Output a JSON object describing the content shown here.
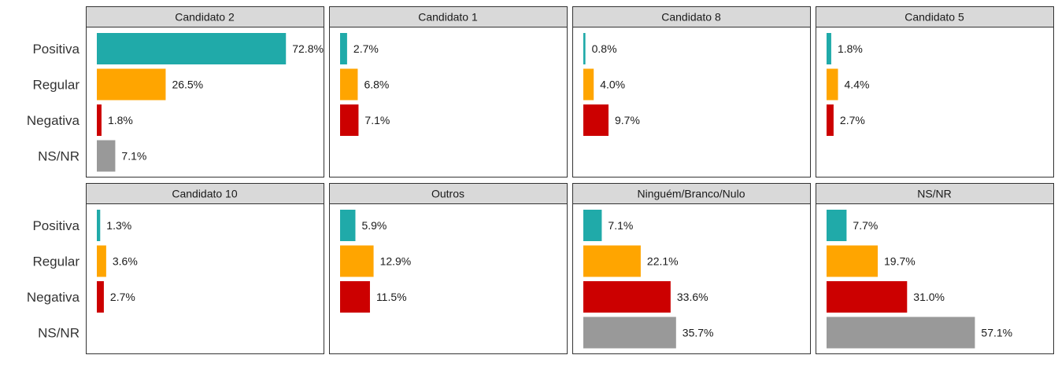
{
  "chart_data": {
    "type": "bar",
    "orientation": "horizontal",
    "layout": "facet-grid 2x4",
    "legend": "none",
    "grid": false,
    "categories": [
      "Positiva",
      "Regular",
      "Negativa",
      "NS/NR"
    ],
    "colors": {
      "Positiva": "#20aaa9",
      "Regular": "#ffa500",
      "Negativa": "#cc0000",
      "NS/NR": "#999999"
    },
    "value_suffix": "%",
    "xlim": [
      0,
      75
    ],
    "panels": [
      {
        "title": "Candidato 2",
        "values": [
          72.8,
          26.5,
          1.8,
          7.1
        ],
        "labels": [
          "72.8%",
          "26.5%",
          "1.8%",
          "7.1%"
        ]
      },
      {
        "title": "Candidato 1",
        "values": [
          2.7,
          6.8,
          7.1,
          null
        ],
        "labels": [
          "2.7%",
          "6.8%",
          "7.1%",
          null
        ]
      },
      {
        "title": "Candidato 8",
        "values": [
          0.8,
          4.0,
          9.7,
          null
        ],
        "labels": [
          "0.8%",
          "4.0%",
          "9.7%",
          null
        ]
      },
      {
        "title": "Candidato 5",
        "values": [
          1.8,
          4.4,
          2.7,
          null
        ],
        "labels": [
          "1.8%",
          "4.4%",
          "2.7%",
          null
        ]
      },
      {
        "title": "Candidato 10",
        "values": [
          1.3,
          3.6,
          2.7,
          null
        ],
        "labels": [
          "1.3%",
          "3.6%",
          "2.7%",
          null
        ]
      },
      {
        "title": "Outros",
        "values": [
          5.9,
          12.9,
          11.5,
          null
        ],
        "labels": [
          "5.9%",
          "12.9%",
          "11.5%",
          null
        ]
      },
      {
        "title": "Ninguém/Branco/Nulo",
        "values": [
          7.1,
          22.1,
          33.6,
          35.7
        ],
        "labels": [
          "7.1%",
          "22.1%",
          "33.6%",
          "35.7%"
        ]
      },
      {
        "title": "NS/NR",
        "values": [
          7.7,
          19.7,
          31.0,
          57.1
        ],
        "labels": [
          "7.7%",
          "19.7%",
          "31.0%",
          "57.1%"
        ]
      }
    ]
  }
}
